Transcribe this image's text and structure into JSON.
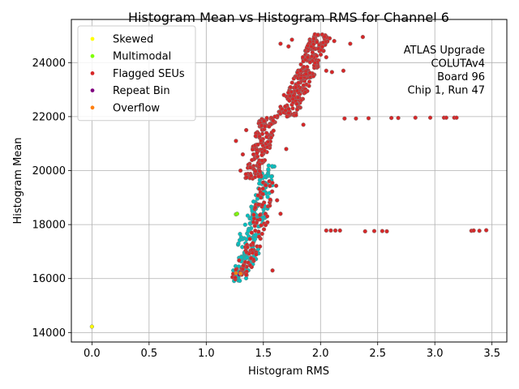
{
  "chart_data": {
    "type": "scatter",
    "title": "Histogram Mean vs Histogram RMS for Channel 6",
    "xlabel": "Histogram RMS",
    "ylabel": "Histogram Mean",
    "xlim": [
      -0.18,
      3.63
    ],
    "ylim": [
      13650,
      25600
    ],
    "xticks": [
      0.0,
      0.5,
      1.0,
      1.5,
      2.0,
      2.5,
      3.0,
      3.5
    ],
    "xtick_labels": [
      "0.0",
      "0.5",
      "1.0",
      "1.5",
      "2.0",
      "2.5",
      "3.0",
      "3.5"
    ],
    "yticks": [
      14000,
      16000,
      18000,
      20000,
      22000,
      24000
    ],
    "ytick_labels": [
      "14000",
      "16000",
      "18000",
      "20000",
      "22000",
      "24000"
    ],
    "grid": true,
    "legend_position": "top-left",
    "annotation": [
      "ATLAS Upgrade",
      "COLUTAv4",
      "Board 96",
      "Chip 1, Run 47"
    ],
    "annotation_position": "top-right",
    "legend": [
      {
        "name": "Skewed",
        "color": "#ffff00"
      },
      {
        "name": "Multimodal",
        "color": "#7fff00"
      },
      {
        "name": "Flagged SEUs",
        "color": "#d62728"
      },
      {
        "name": "Repeat Bin",
        "color": "#800080"
      },
      {
        "name": "Overflow",
        "color": "#ff7f0e"
      }
    ],
    "colors": {
      "normal": "#00bfbf",
      "outline": "#808080"
    },
    "series": [
      {
        "name": "Skewed",
        "color": "#ffff00",
        "points": [
          [
            0.0,
            14220
          ]
        ]
      },
      {
        "name": "Multimodal",
        "color": "#7fff00",
        "points": [
          [
            1.26,
            18380
          ],
          [
            1.27,
            18400
          ]
        ]
      },
      {
        "name": "Repeat Bin",
        "color": "#800080",
        "points": [
          [
            1.29,
            16150
          ]
        ]
      },
      {
        "name": "Overflow",
        "color": "#ff7f0e",
        "points": [
          [
            1.26,
            16200
          ],
          [
            1.3,
            16180
          ]
        ]
      }
    ],
    "clusters": [
      {
        "color": "#00bfbf",
        "x_range": [
          1.2,
          1.48
        ],
        "y_range": [
          15900,
          17200
        ],
        "count": 70
      },
      {
        "color": "#00bfbf",
        "x_range": [
          1.25,
          1.55
        ],
        "y_range": [
          17100,
          18700
        ],
        "count": 60
      },
      {
        "color": "#00bfbf",
        "x_range": [
          1.38,
          1.62
        ],
        "y_range": [
          18200,
          20200
        ],
        "count": 60
      },
      {
        "color": "#d62728",
        "x_range": [
          1.22,
          1.48
        ],
        "y_range": [
          15950,
          17300
        ],
        "count": 45
      },
      {
        "color": "#d62728",
        "x_range": [
          1.36,
          1.62
        ],
        "y_range": [
          17300,
          19700
        ],
        "count": 55
      },
      {
        "color": "#d62728",
        "x_range": [
          1.34,
          1.62
        ],
        "y_range": [
          19700,
          22000
        ],
        "count": 150
      },
      {
        "color": "#d62728",
        "x_range": [
          1.62,
          1.95
        ],
        "y_range": [
          22000,
          23600
        ],
        "count": 130
      },
      {
        "color": "#d62728",
        "x_range": [
          1.78,
          2.08
        ],
        "y_range": [
          23400,
          25050
        ],
        "count": 150
      }
    ],
    "scatter_points": {
      "color": "#d62728",
      "points": [
        [
          1.26,
          21100
        ],
        [
          1.3,
          20000
        ],
        [
          1.32,
          20600
        ],
        [
          1.35,
          21500
        ],
        [
          1.58,
          16300
        ],
        [
          1.62,
          18900
        ],
        [
          1.65,
          18400
        ],
        [
          1.7,
          20800
        ],
        [
          1.68,
          22800
        ],
        [
          1.6,
          22000
        ],
        [
          1.65,
          24700
        ],
        [
          1.72,
          24600
        ],
        [
          1.75,
          24850
        ],
        [
          2.05,
          23700
        ],
        [
          2.1,
          23650
        ],
        [
          2.05,
          24200
        ],
        [
          2.08,
          24900
        ],
        [
          2.12,
          24800
        ],
        [
          2.2,
          23700
        ],
        [
          2.26,
          24700
        ],
        [
          2.37,
          24950
        ],
        [
          1.85,
          21700
        ],
        [
          2.21,
          21930
        ],
        [
          2.31,
          21930
        ],
        [
          2.42,
          21940
        ],
        [
          2.62,
          21950
        ],
        [
          2.68,
          21950
        ],
        [
          2.83,
          21960
        ],
        [
          2.96,
          21960
        ],
        [
          3.08,
          21960
        ],
        [
          3.1,
          21960
        ],
        [
          3.17,
          21960
        ],
        [
          3.19,
          21960
        ],
        [
          2.05,
          17780
        ],
        [
          2.09,
          17780
        ],
        [
          2.13,
          17780
        ],
        [
          2.17,
          17780
        ],
        [
          2.39,
          17750
        ],
        [
          2.47,
          17760
        ],
        [
          2.54,
          17760
        ],
        [
          2.58,
          17750
        ],
        [
          3.32,
          17770
        ],
        [
          3.34,
          17780
        ],
        [
          3.39,
          17770
        ],
        [
          3.45,
          17790
        ]
      ]
    }
  }
}
